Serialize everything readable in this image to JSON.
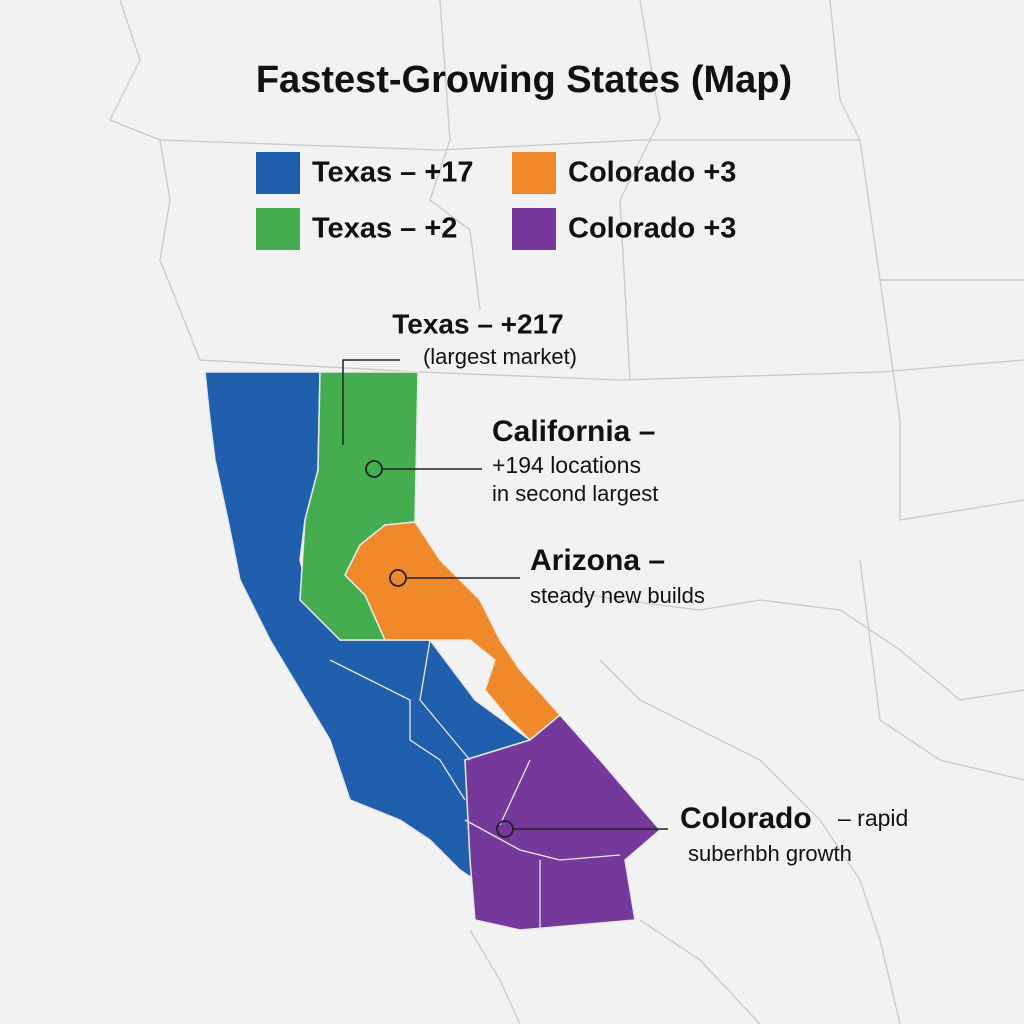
{
  "title": "Fastest-Growing States (Map)",
  "legend": [
    {
      "label": "Texas – +17",
      "color": "#1f5fae"
    },
    {
      "label": "Colorado +3",
      "color": "#f0892a"
    },
    {
      "label": "Texas – +2",
      "color": "#43ad4f"
    },
    {
      "label": "Colorado +3",
      "color": "#74399a"
    }
  ],
  "annotations": [
    {
      "title": "Texas – +217",
      "lines": [
        "(largest market)"
      ]
    },
    {
      "title": "California –",
      "lines": [
        "+194 locations",
        "in second largest"
      ]
    },
    {
      "title": "Arizona –",
      "lines": [
        "steady new builds"
      ]
    },
    {
      "title": "Colorado",
      "suffix": "– rapid",
      "lines": [
        "suberhbh growth"
      ]
    }
  ]
}
